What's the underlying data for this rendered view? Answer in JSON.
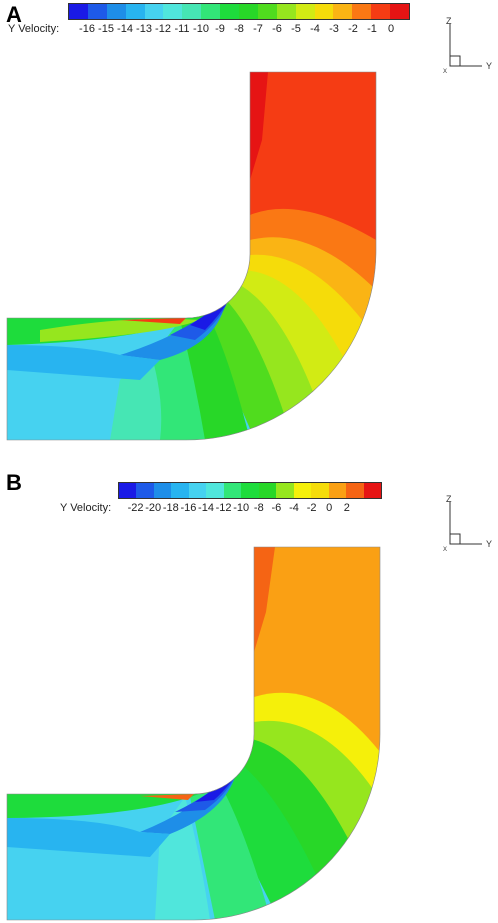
{
  "panels": [
    {
      "letter": "A",
      "legend_label": "Y Velocity:",
      "ticks": [
        "-16",
        "-15",
        "-14",
        "-13",
        "-12",
        "-11",
        "-10",
        "-9",
        "-8",
        "-7",
        "-6",
        "-5",
        "-4",
        "-3",
        "-2",
        "-1",
        "0"
      ],
      "colors": [
        "#1a1ae6",
        "#1e5ae8",
        "#1e8ee8",
        "#28b4f0",
        "#46d2f0",
        "#50e6dc",
        "#46e6b4",
        "#32e678",
        "#1edc3c",
        "#28d728",
        "#50dc1e",
        "#96e61e",
        "#d2eb14",
        "#f5dc0a",
        "#fab414",
        "#fa7814",
        "#f53c14",
        "#e61414"
      ]
    },
    {
      "letter": "B",
      "legend_label": "Y Velocity:",
      "ticks": [
        "-22",
        "-20",
        "-18",
        "-16",
        "-14",
        "-12",
        "-10",
        "-8",
        "-6",
        "-4",
        "-2",
        "0",
        "2"
      ],
      "colors": [
        "#1a1ae6",
        "#1e5ae8",
        "#1e8ee8",
        "#28b4f0",
        "#46d2f0",
        "#50e6dc",
        "#32e678",
        "#1edc3c",
        "#28d728",
        "#96e61e",
        "#f5f00a",
        "#f5dc0a",
        "#faa014",
        "#f56414",
        "#e61414"
      ]
    }
  ],
  "axis": {
    "z": "Z",
    "y": "Y",
    "x": "X"
  }
}
